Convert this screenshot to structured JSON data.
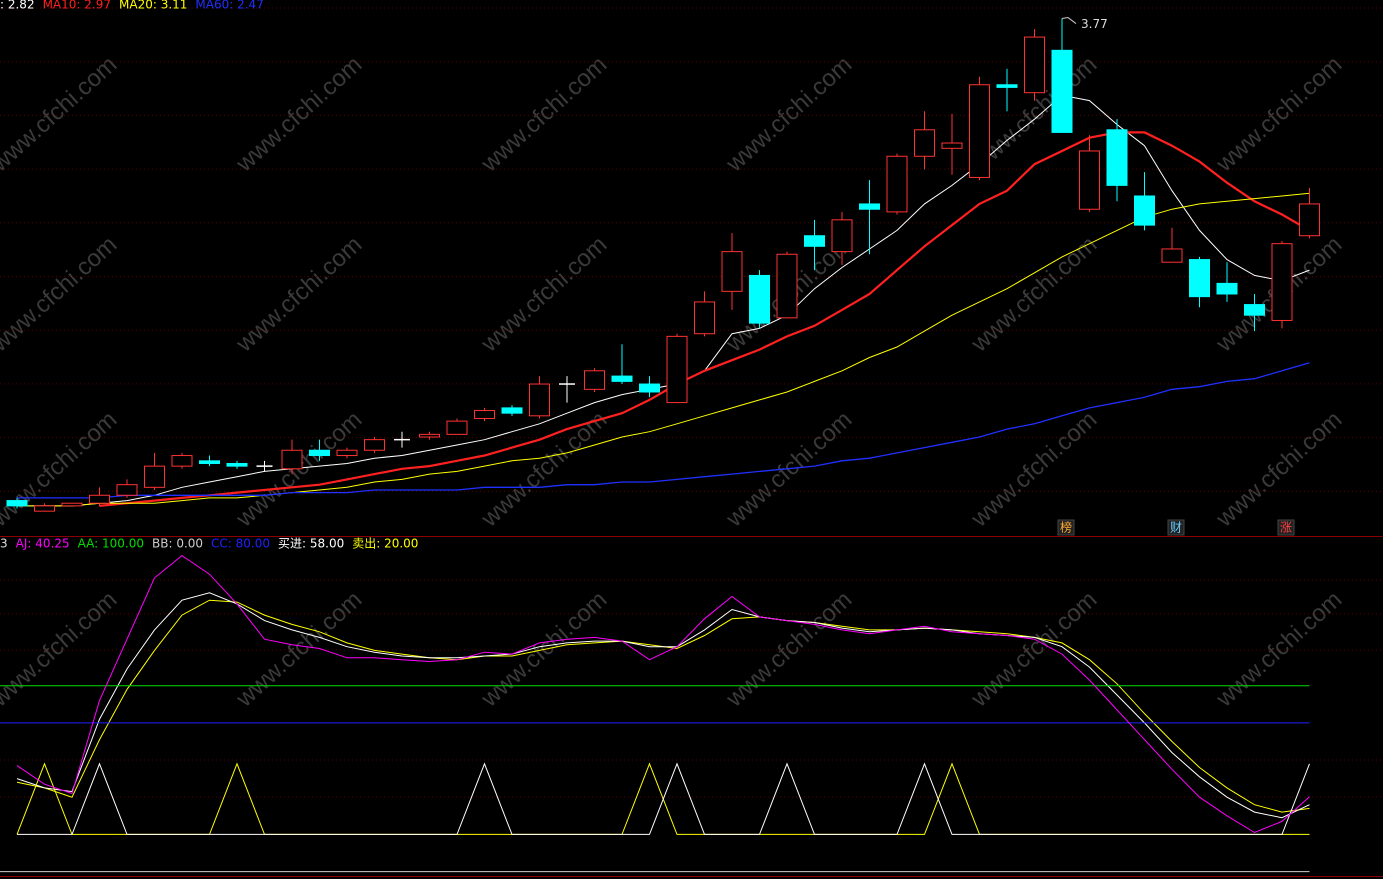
{
  "watermark": "www.cfchi.com",
  "chart_data": [
    {
      "type": "candlestick",
      "ylim": [
        1.82,
        3.84
      ],
      "up_color": "#ff3232",
      "down_color": "#00ffff",
      "flat_color": "#ffffff",
      "open": [
        1.95,
        1.91,
        1.93,
        1.94,
        1.97,
        2.0,
        2.08,
        2.1,
        2.09,
        2.08,
        2.07,
        2.14,
        2.12,
        2.14,
        2.18,
        2.19,
        2.2,
        2.26,
        2.3,
        2.27,
        2.39,
        2.37,
        2.42,
        2.39,
        2.32,
        2.58,
        2.74,
        2.8,
        2.64,
        2.95,
        2.89,
        3.07,
        3.04,
        3.25,
        3.28,
        3.17,
        3.52,
        3.49,
        3.65,
        3.05,
        3.35,
        3.1,
        2.85,
        2.86,
        2.77,
        2.69,
        2.63,
        2.95
      ],
      "high": [
        1.96,
        1.94,
        1.94,
        2.0,
        2.03,
        2.13,
        2.13,
        2.12,
        2.1,
        2.1,
        2.18,
        2.18,
        2.15,
        2.19,
        2.21,
        2.21,
        2.26,
        2.3,
        2.31,
        2.42,
        2.42,
        2.45,
        2.54,
        2.42,
        2.58,
        2.74,
        2.96,
        2.82,
        2.89,
        3.01,
        3.04,
        3.16,
        3.26,
        3.42,
        3.41,
        3.55,
        3.58,
        3.73,
        3.77,
        3.33,
        3.39,
        3.19,
        2.98,
        2.87,
        2.85,
        2.73,
        2.93,
        3.13
      ],
      "low": [
        1.92,
        1.91,
        1.93,
        1.93,
        1.96,
        1.99,
        2.07,
        2.08,
        2.07,
        2.06,
        2.05,
        2.1,
        2.11,
        2.13,
        2.15,
        2.18,
        2.2,
        2.25,
        2.27,
        2.26,
        2.32,
        2.36,
        2.39,
        2.34,
        2.32,
        2.57,
        2.67,
        2.6,
        2.64,
        2.82,
        2.84,
        2.88,
        3.03,
        3.2,
        3.18,
        3.16,
        3.42,
        3.46,
        3.34,
        3.04,
        3.08,
        2.97,
        2.85,
        2.68,
        2.7,
        2.59,
        2.6,
        2.94
      ],
      "close": [
        1.93,
        1.93,
        1.94,
        1.97,
        2.01,
        2.08,
        2.12,
        2.09,
        2.08,
        2.08,
        2.14,
        2.12,
        2.14,
        2.18,
        2.18,
        2.2,
        2.25,
        2.29,
        2.28,
        2.39,
        2.39,
        2.44,
        2.4,
        2.36,
        2.57,
        2.7,
        2.89,
        2.62,
        2.88,
        2.91,
        3.01,
        3.05,
        3.25,
        3.35,
        3.3,
        3.52,
        3.51,
        3.7,
        3.34,
        3.27,
        3.14,
        2.99,
        2.9,
        2.72,
        2.73,
        2.65,
        2.92,
        3.07
      ],
      "high_label_index": 38,
      "series": [
        {
          "label": ": 2.82",
          "color": "#ffffff",
          "width": 1,
          "values": [
            1.93,
            1.93,
            1.93,
            1.94,
            1.95,
            1.97,
            2.0,
            2.02,
            2.04,
            2.06,
            2.07,
            2.08,
            2.09,
            2.11,
            2.12,
            2.14,
            2.16,
            2.18,
            2.21,
            2.24,
            2.28,
            2.32,
            2.35,
            2.37,
            2.39,
            2.44,
            2.58,
            2.6,
            2.65,
            2.75,
            2.83,
            2.9,
            2.97,
            3.07,
            3.14,
            3.22,
            3.31,
            3.39,
            3.48,
            3.46,
            3.37,
            3.29,
            3.12,
            2.97,
            2.86,
            2.8,
            2.78,
            2.82
          ]
        },
        {
          "label": "MA10: 2.97",
          "color": "#ff2020",
          "width": 2.2,
          "values": [
            null,
            null,
            null,
            1.93,
            1.94,
            1.95,
            1.96,
            1.97,
            1.98,
            1.99,
            2.0,
            2.01,
            2.03,
            2.05,
            2.07,
            2.08,
            2.1,
            2.12,
            2.15,
            2.18,
            2.22,
            2.25,
            2.28,
            2.33,
            2.39,
            2.44,
            2.48,
            2.52,
            2.57,
            2.61,
            2.67,
            2.73,
            2.82,
            2.91,
            2.99,
            3.07,
            3.12,
            3.22,
            3.27,
            3.32,
            3.34,
            3.34,
            3.29,
            3.23,
            3.15,
            3.08,
            3.03,
            2.97
          ]
        },
        {
          "label": "MA20: 3.11",
          "color": "#ffff00",
          "width": 1,
          "values": [
            1.93,
            1.93,
            1.93,
            1.94,
            1.94,
            1.94,
            1.95,
            1.96,
            1.96,
            1.97,
            1.98,
            1.99,
            2.0,
            2.02,
            2.03,
            2.05,
            2.06,
            2.08,
            2.1,
            2.11,
            2.13,
            2.16,
            2.19,
            2.21,
            2.24,
            2.27,
            2.3,
            2.33,
            2.36,
            2.4,
            2.44,
            2.49,
            2.53,
            2.59,
            2.65,
            2.7,
            2.75,
            2.81,
            2.87,
            2.92,
            2.97,
            3.02,
            3.05,
            3.07,
            3.08,
            3.09,
            3.1,
            3.11
          ]
        },
        {
          "label": "MA60: 2.47",
          "color": "#2030ff",
          "width": 1.3,
          "values": [
            1.96,
            1.96,
            1.96,
            1.96,
            1.97,
            1.97,
            1.97,
            1.97,
            1.97,
            1.97,
            1.98,
            1.98,
            1.98,
            1.99,
            1.99,
            1.99,
            1.99,
            2.0,
            2.0,
            2.0,
            2.01,
            2.01,
            2.02,
            2.02,
            2.03,
            2.04,
            2.05,
            2.06,
            2.07,
            2.08,
            2.1,
            2.11,
            2.13,
            2.15,
            2.17,
            2.19,
            2.22,
            2.24,
            2.27,
            2.3,
            2.32,
            2.34,
            2.37,
            2.38,
            2.4,
            2.41,
            2.44,
            2.47
          ]
        }
      ],
      "markers": [
        {
          "index": 38,
          "text": "榜",
          "color": "#ffaa33"
        },
        {
          "index": 42,
          "text": "财",
          "color": "#66ccff"
        },
        {
          "index": 46,
          "text": "涨",
          "color": "#ff4040"
        }
      ]
    },
    {
      "type": "line",
      "ylim": [
        -4,
        180
      ],
      "cut_label": "3",
      "series": [
        {
          "label": "AJ: 40.25",
          "color": "#ff00ff",
          "values": [
            57,
            47,
            42,
            92,
            125,
            158,
            170,
            160,
            144,
            125,
            122,
            120,
            115,
            115,
            114,
            113,
            114,
            118,
            117,
            123,
            125,
            126,
            124,
            114,
            121,
            136,
            148,
            137,
            135,
            133,
            130,
            128,
            130,
            132,
            129,
            128,
            127,
            125,
            117,
            103,
            87,
            71,
            55,
            40,
            30,
            21,
            27,
            40.25
          ]
        },
        {
          "label": "AA: 100.00",
          "color": "#00dd00",
          "level": 100
        },
        {
          "label": "BB: 0.00",
          "color": "#cccccc",
          "level": 0
        },
        {
          "label": "CC: 80.00",
          "color": "#2020ff",
          "level": 80
        },
        {
          "label": "买进: 58.00",
          "color": "#ffffff",
          "values": [
            20,
            20,
            20,
            58,
            20,
            20,
            20,
            20,
            20,
            20,
            20,
            20,
            20,
            20,
            20,
            20,
            20,
            58,
            20,
            20,
            20,
            20,
            20,
            20,
            58,
            20,
            20,
            20,
            58,
            20,
            20,
            20,
            20,
            58,
            20,
            20,
            20,
            20,
            20,
            20,
            20,
            20,
            20,
            20,
            20,
            20,
            20,
            58
          ]
        },
        {
          "label": "卖出: 20.00",
          "color": "#ffff00",
          "values": [
            20,
            58,
            20,
            20,
            20,
            20,
            20,
            20,
            58,
            20,
            20,
            20,
            20,
            20,
            20,
            20,
            20,
            20,
            20,
            20,
            20,
            20,
            20,
            58,
            20,
            20,
            20,
            20,
            20,
            20,
            20,
            20,
            20,
            20,
            58,
            20,
            20,
            20,
            20,
            20,
            20,
            20,
            20,
            20,
            20,
            20,
            20,
            20
          ]
        },
        {
          "color": "#ffffff",
          "values": [
            50,
            45,
            43,
            82,
            109,
            130,
            146,
            150,
            144,
            135,
            130,
            126,
            121,
            118,
            116,
            115,
            115,
            116,
            117,
            121,
            123,
            124,
            124,
            121,
            121,
            130,
            141,
            137,
            135,
            134,
            131,
            129,
            130,
            131,
            130,
            128,
            127,
            126,
            121,
            110,
            95,
            80,
            64,
            51,
            40,
            32,
            29,
            36
          ]
        },
        {
          "color": "#ffff00",
          "values": [
            48,
            45,
            40,
            71,
            98,
            119,
            138,
            146,
            145,
            138,
            133,
            129,
            123,
            119,
            117,
            115,
            114,
            116,
            116,
            119,
            122,
            123,
            124,
            122,
            120,
            127,
            136,
            137,
            135,
            134,
            132,
            130,
            130,
            131,
            130,
            129,
            128,
            126,
            123,
            114,
            101,
            85,
            70,
            56,
            45,
            36,
            32,
            34
          ]
        }
      ]
    }
  ]
}
